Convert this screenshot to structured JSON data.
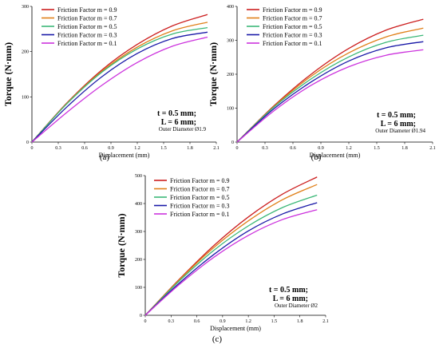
{
  "chart_data": [
    {
      "type": "line",
      "panel_label": "(a)",
      "xlabel": "Displacement (mm)",
      "ylabel": "Torque (N·mm)",
      "xlim": [
        0,
        2.1
      ],
      "ylim": [
        0,
        300
      ],
      "xticks": [
        "0",
        "0.3",
        "0.6",
        "0.9",
        "1.2",
        "1.5",
        "1.8",
        "2.1"
      ],
      "yticks": [
        "0",
        "100",
        "200",
        "300"
      ],
      "yticks_values": [
        0,
        100,
        200,
        300
      ],
      "legend_position": "top-left",
      "annotation": [
        "t = 0.5 mm;",
        "L = 6 mm;",
        "Outer Diameter Ø1.9"
      ],
      "series": [
        {
          "name": "Friction Factor m = 0.9",
          "color": "#cc1f1f",
          "x": [
            0,
            0.4,
            0.8,
            1.2,
            1.6,
            2.0
          ],
          "y": [
            0,
            87,
            160,
            216,
            257,
            282
          ]
        },
        {
          "name": "Friction Factor m = 0.7",
          "color": "#e0801a",
          "x": [
            0,
            0.4,
            0.8,
            1.2,
            1.6,
            2.0
          ],
          "y": [
            0,
            86,
            157,
            210,
            246,
            265
          ]
        },
        {
          "name": "Friction Factor m = 0.5",
          "color": "#3cb878",
          "x": [
            0,
            0.4,
            0.8,
            1.2,
            1.6,
            2.0
          ],
          "y": [
            0,
            85,
            155,
            206,
            239,
            253
          ]
        },
        {
          "name": "Friction Factor m = 0.3",
          "color": "#1a1aa8",
          "x": [
            0,
            0.4,
            0.8,
            1.2,
            1.6,
            2.0
          ],
          "y": [
            0,
            78,
            145,
            196,
            229,
            243
          ]
        },
        {
          "name": "Friction Factor m = 0.1",
          "color": "#cc33dd",
          "x": [
            0,
            0.4,
            0.8,
            1.2,
            1.6,
            2.0
          ],
          "y": [
            0,
            66,
            126,
            176,
            212,
            232
          ]
        }
      ]
    },
    {
      "type": "line",
      "panel_label": "(b)",
      "xlabel": "Displacement (mm)",
      "ylabel": "Torque (N·mm)",
      "xlim": [
        0,
        2.1
      ],
      "ylim": [
        0,
        400
      ],
      "xticks": [
        "0",
        "0.3",
        "0.6",
        "0.9",
        "1.2",
        "1.5",
        "1.8",
        "2.1"
      ],
      "yticks": [
        "0",
        "100",
        "200",
        "300",
        "400"
      ],
      "yticks_values": [
        0,
        100,
        200,
        300,
        400
      ],
      "legend_position": "top-left",
      "annotation": [
        "t = 0.5 mm;",
        "L = 6 mm;",
        "Outer Diameter Ø1.94"
      ],
      "series": [
        {
          "name": "Friction Factor m = 0.9",
          "color": "#cc1f1f",
          "x": [
            0,
            0.4,
            0.8,
            1.2,
            1.6,
            2.0
          ],
          "y": [
            0,
            108,
            201,
            276,
            330,
            362
          ]
        },
        {
          "name": "Friction Factor m = 0.7",
          "color": "#e0801a",
          "x": [
            0,
            0.4,
            0.8,
            1.2,
            1.6,
            2.0
          ],
          "y": [
            0,
            106,
            195,
            263,
            310,
            336
          ]
        },
        {
          "name": "Friction Factor m = 0.5",
          "color": "#3cb878",
          "x": [
            0,
            0.4,
            0.8,
            1.2,
            1.6,
            2.0
          ],
          "y": [
            0,
            104,
            187,
            251,
            294,
            315
          ]
        },
        {
          "name": "Friction Factor m = 0.3",
          "color": "#1a1aa8",
          "x": [
            0,
            0.4,
            0.8,
            1.2,
            1.6,
            2.0
          ],
          "y": [
            0,
            99,
            178,
            239,
            278,
            296
          ]
        },
        {
          "name": "Friction Factor m = 0.1",
          "color": "#cc33dd",
          "x": [
            0,
            0.4,
            0.8,
            1.2,
            1.6,
            2.0
          ],
          "y": [
            0,
            93,
            168,
            222,
            256,
            272
          ]
        }
      ]
    },
    {
      "type": "line",
      "panel_label": "(c)",
      "xlabel": "Displacement (mm)",
      "ylabel": "Torque (N·mm)",
      "xlim": [
        0,
        2.1
      ],
      "ylim": [
        0,
        500
      ],
      "xticks": [
        "0",
        "0.3",
        "0.6",
        "0.9",
        "1.2",
        "1.5",
        "1.8",
        "2.1"
      ],
      "yticks": [
        "0",
        "100",
        "200",
        "300",
        "400",
        "500"
      ],
      "yticks_values": [
        0,
        100,
        200,
        300,
        400,
        500
      ],
      "legend_position": "top-left",
      "annotation": [
        "t = 0.5 mm;",
        "L = 6 mm;",
        "Outer Diameter Ø2"
      ],
      "series": [
        {
          "name": "Friction Factor m = 0.9",
          "color": "#cc1f1f",
          "x": [
            0,
            0.4,
            0.8,
            1.2,
            1.6,
            2.0
          ],
          "y": [
            0,
            130,
            250,
            352,
            434,
            495
          ]
        },
        {
          "name": "Friction Factor m = 0.7",
          "color": "#e0801a",
          "x": [
            0,
            0.4,
            0.8,
            1.2,
            1.6,
            2.0
          ],
          "y": [
            0,
            128,
            243,
            338,
            414,
            468
          ]
        },
        {
          "name": "Friction Factor m = 0.5",
          "color": "#3cb878",
          "x": [
            0,
            0.4,
            0.8,
            1.2,
            1.6,
            2.0
          ],
          "y": [
            0,
            124,
            233,
            320,
            386,
            430
          ]
        },
        {
          "name": "Friction Factor m = 0.3",
          "color": "#1a1aa8",
          "x": [
            0,
            0.4,
            0.8,
            1.2,
            1.6,
            2.0
          ],
          "y": [
            0,
            116,
            218,
            302,
            363,
            403
          ]
        },
        {
          "name": "Friction Factor m = 0.1",
          "color": "#cc33dd",
          "x": [
            0,
            0.4,
            0.8,
            1.2,
            1.6,
            2.0
          ],
          "y": [
            0,
            111,
            208,
            286,
            343,
            378
          ]
        }
      ]
    }
  ]
}
